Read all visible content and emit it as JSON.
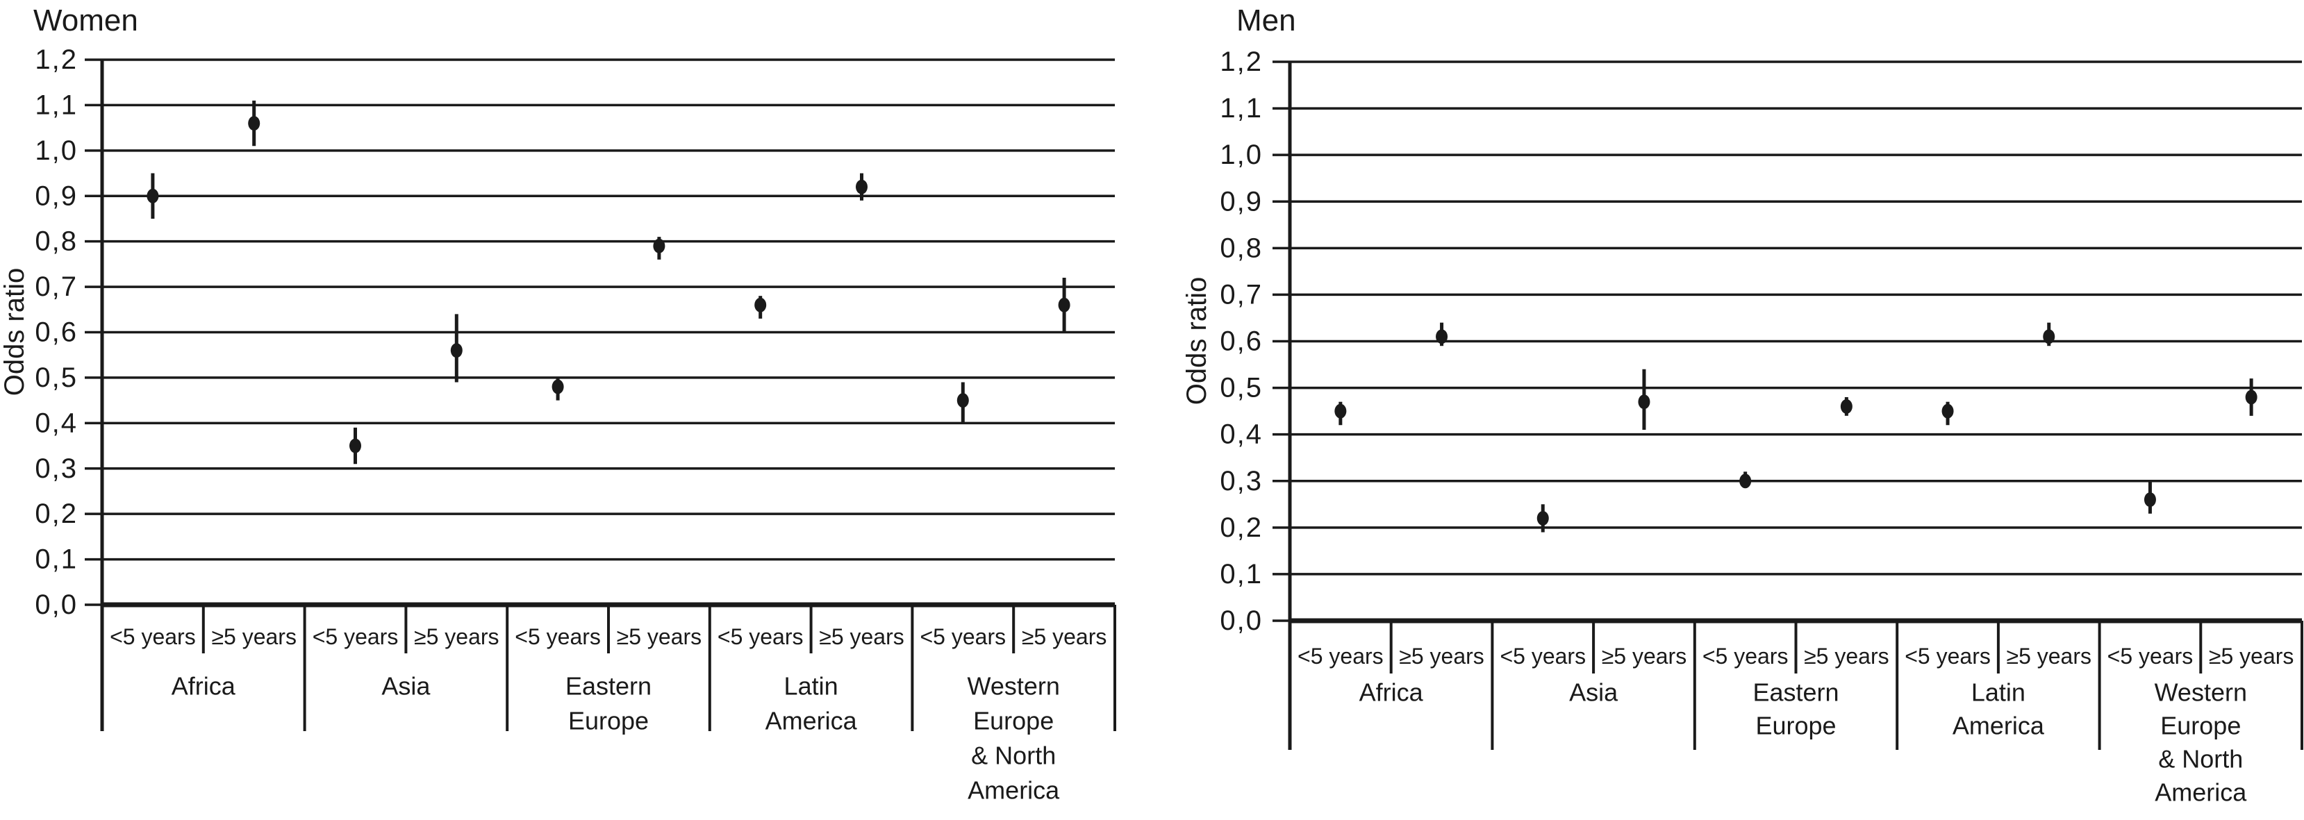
{
  "figure": {
    "background_color": "#ffffff",
    "ink_color": "#1a1a1a"
  },
  "chart_data": [
    {
      "type": "scatter",
      "subtype": "forest-plot-dot-with-95ci-error-bars",
      "title": "Women",
      "ylabel": "Odds ratio",
      "ylim": [
        0.0,
        1.2
      ],
      "ytick_step": 0.1,
      "decimal_separator": ",",
      "ytick_labels": [
        "1,2",
        "1,1",
        "1,0",
        "0,9",
        "0,8",
        "0,7",
        "0,6",
        "0,5",
        "0,4",
        "0,3",
        "0,2",
        "0,1",
        "0,0"
      ],
      "grid": true,
      "legend": "none",
      "categories": [
        "Africa",
        "Asia",
        "Eastern Europe",
        "Latin America",
        "Western Europe & North America"
      ],
      "category_label_lines": [
        [
          "Africa"
        ],
        [
          "Asia"
        ],
        [
          "Eastern",
          "Europe"
        ],
        [
          "Latin",
          "America"
        ],
        [
          "Western",
          "Europe",
          "& North",
          "America"
        ]
      ],
      "subcategories": [
        "<5 years",
        "≥5 years"
      ],
      "points": [
        {
          "category": "Africa",
          "subcategory": "<5 years",
          "odds_ratio": 0.9,
          "ci_low": 0.85,
          "ci_high": 0.95
        },
        {
          "category": "Africa",
          "subcategory": "≥5 years",
          "odds_ratio": 1.06,
          "ci_low": 1.01,
          "ci_high": 1.11
        },
        {
          "category": "Asia",
          "subcategory": "<5 years",
          "odds_ratio": 0.35,
          "ci_low": 0.31,
          "ci_high": 0.39
        },
        {
          "category": "Asia",
          "subcategory": "≥5 years",
          "odds_ratio": 0.56,
          "ci_low": 0.49,
          "ci_high": 0.64
        },
        {
          "category": "Eastern Europe",
          "subcategory": "<5 years",
          "odds_ratio": 0.48,
          "ci_low": 0.45,
          "ci_high": 0.5
        },
        {
          "category": "Eastern Europe",
          "subcategory": "≥5 years",
          "odds_ratio": 0.79,
          "ci_low": 0.76,
          "ci_high": 0.81
        },
        {
          "category": "Latin America",
          "subcategory": "<5 years",
          "odds_ratio": 0.66,
          "ci_low": 0.63,
          "ci_high": 0.68
        },
        {
          "category": "Latin America",
          "subcategory": "≥5 years",
          "odds_ratio": 0.92,
          "ci_low": 0.89,
          "ci_high": 0.95
        },
        {
          "category": "Western Europe & North America",
          "subcategory": "<5 years",
          "odds_ratio": 0.45,
          "ci_low": 0.4,
          "ci_high": 0.49
        },
        {
          "category": "Western Europe & North America",
          "subcategory": "≥5 years",
          "odds_ratio": 0.66,
          "ci_low": 0.6,
          "ci_high": 0.72
        }
      ]
    },
    {
      "type": "scatter",
      "subtype": "forest-plot-dot-with-95ci-error-bars",
      "title": "Men",
      "ylabel": "Odds ratio",
      "ylim": [
        0.0,
        1.2
      ],
      "ytick_step": 0.1,
      "decimal_separator": ",",
      "ytick_labels": [
        "1,2",
        "1,1",
        "1,0",
        "0,9",
        "0,8",
        "0,7",
        "0,6",
        "0,5",
        "0,4",
        "0,3",
        "0,2",
        "0,1",
        "0,0"
      ],
      "grid": true,
      "legend": "none",
      "categories": [
        "Africa",
        "Asia",
        "Eastern Europe",
        "Latin America",
        "Western Europe & North America"
      ],
      "category_label_lines": [
        [
          "Africa"
        ],
        [
          "Asia"
        ],
        [
          "Eastern",
          "Europe"
        ],
        [
          "Latin",
          "America"
        ],
        [
          "Western",
          "Europe",
          "& North",
          "America"
        ]
      ],
      "subcategories": [
        "<5 years",
        "≥5 years"
      ],
      "points": [
        {
          "category": "Africa",
          "subcategory": "<5 years",
          "odds_ratio": 0.45,
          "ci_low": 0.42,
          "ci_high": 0.47
        },
        {
          "category": "Africa",
          "subcategory": "≥5 years",
          "odds_ratio": 0.61,
          "ci_low": 0.59,
          "ci_high": 0.64
        },
        {
          "category": "Asia",
          "subcategory": "<5 years",
          "odds_ratio": 0.22,
          "ci_low": 0.19,
          "ci_high": 0.25
        },
        {
          "category": "Asia",
          "subcategory": "≥5 years",
          "odds_ratio": 0.47,
          "ci_low": 0.41,
          "ci_high": 0.54
        },
        {
          "category": "Eastern Europe",
          "subcategory": "<5 years",
          "odds_ratio": 0.3,
          "ci_low": 0.29,
          "ci_high": 0.32
        },
        {
          "category": "Eastern Europe",
          "subcategory": "≥5 years",
          "odds_ratio": 0.46,
          "ci_low": 0.44,
          "ci_high": 0.48
        },
        {
          "category": "Latin America",
          "subcategory": "<5 years",
          "odds_ratio": 0.45,
          "ci_low": 0.42,
          "ci_high": 0.47
        },
        {
          "category": "Latin America",
          "subcategory": "≥5 years",
          "odds_ratio": 0.61,
          "ci_low": 0.59,
          "ci_high": 0.64
        },
        {
          "category": "Western Europe & North America",
          "subcategory": "<5 years",
          "odds_ratio": 0.26,
          "ci_low": 0.23,
          "ci_high": 0.3
        },
        {
          "category": "Western Europe & North America",
          "subcategory": "≥5 years",
          "odds_ratio": 0.48,
          "ci_low": 0.44,
          "ci_high": 0.52
        }
      ]
    }
  ]
}
